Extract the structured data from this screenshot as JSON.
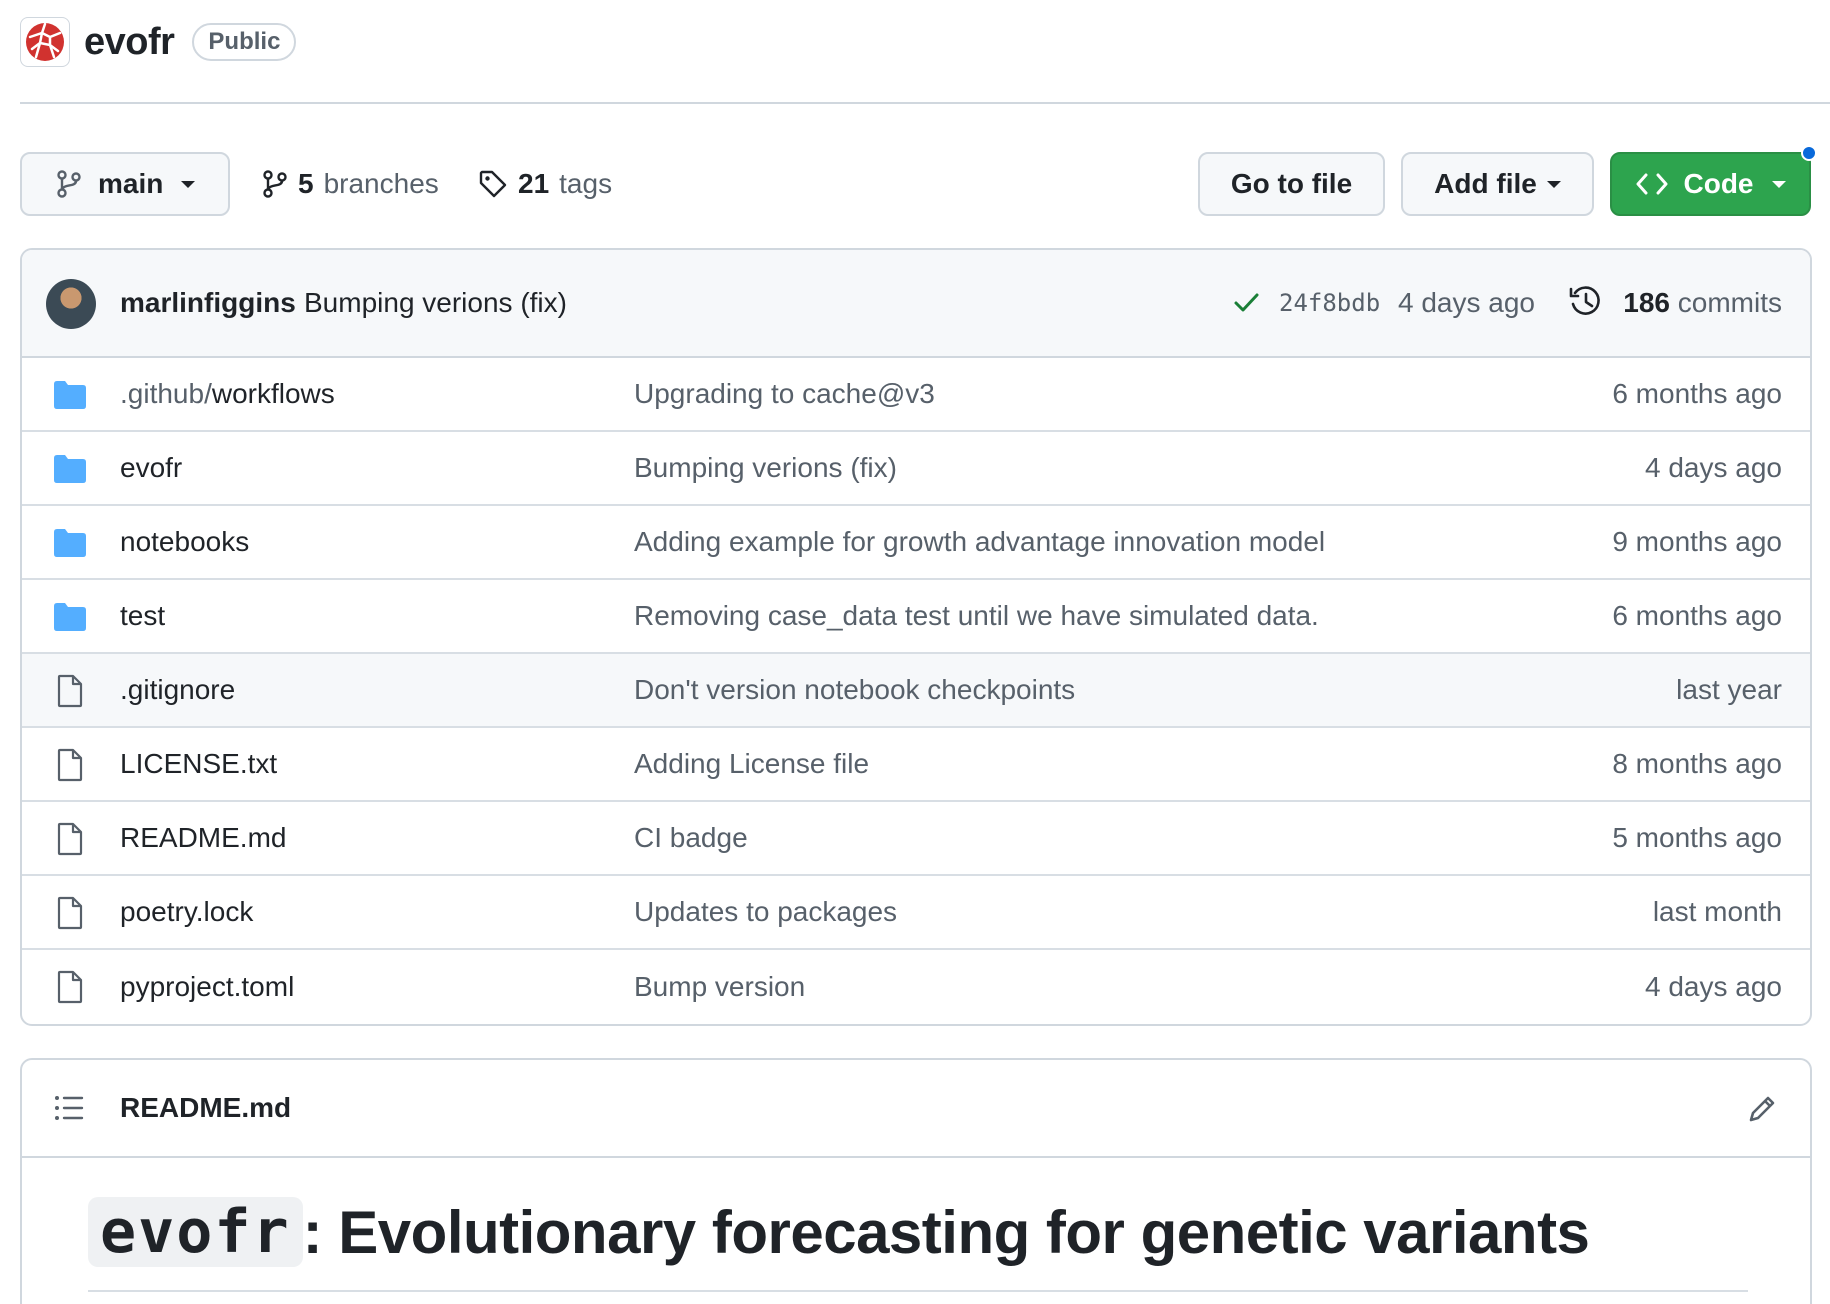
{
  "repo": {
    "name": "evofr",
    "visibility": "Public",
    "brand_color": "#d1322f"
  },
  "toolbar": {
    "branch": "main",
    "branches_count": "5",
    "branches_label": "branches",
    "tags_count": "21",
    "tags_label": "tags",
    "go_to_file": "Go to file",
    "add_file": "Add file",
    "code": "Code",
    "code_color": "#2da44e",
    "notification_color": "#0969da"
  },
  "commit": {
    "author": "marlinfiggins",
    "message": "Bumping verions (fix)",
    "status": "success",
    "sha": "24f8bdb",
    "time": "4 days ago",
    "count": "186",
    "count_label": "commits"
  },
  "files": [
    {
      "type": "folder",
      "prefix": ".github/",
      "name": "workflows",
      "message": "Upgrading to cache@v3",
      "age": "6 months ago"
    },
    {
      "type": "folder",
      "prefix": "",
      "name": "evofr",
      "message": "Bumping verions (fix)",
      "age": "4 days ago"
    },
    {
      "type": "folder",
      "prefix": "",
      "name": "notebooks",
      "message": "Adding example for growth advantage innovation model",
      "age": "9 months ago"
    },
    {
      "type": "folder",
      "prefix": "",
      "name": "test",
      "message": "Removing case_data test until we have simulated data.",
      "age": "6 months ago"
    },
    {
      "type": "file",
      "prefix": "",
      "name": ".gitignore",
      "message": "Don't version notebook checkpoints",
      "age": "last year"
    },
    {
      "type": "file",
      "prefix": "",
      "name": "LICENSE.txt",
      "message": "Adding License file",
      "age": "8 months ago"
    },
    {
      "type": "file",
      "prefix": "",
      "name": "README.md",
      "message": "CI badge",
      "age": "5 months ago"
    },
    {
      "type": "file",
      "prefix": "",
      "name": "poetry.lock",
      "message": "Updates to packages",
      "age": "last month"
    },
    {
      "type": "file",
      "prefix": "",
      "name": "pyproject.toml",
      "message": "Bump version",
      "age": "4 days ago"
    }
  ],
  "readme": {
    "title": "README.md",
    "heading_code": "evofr",
    "heading_text": ": Evolutionary forecasting for genetic variants"
  }
}
